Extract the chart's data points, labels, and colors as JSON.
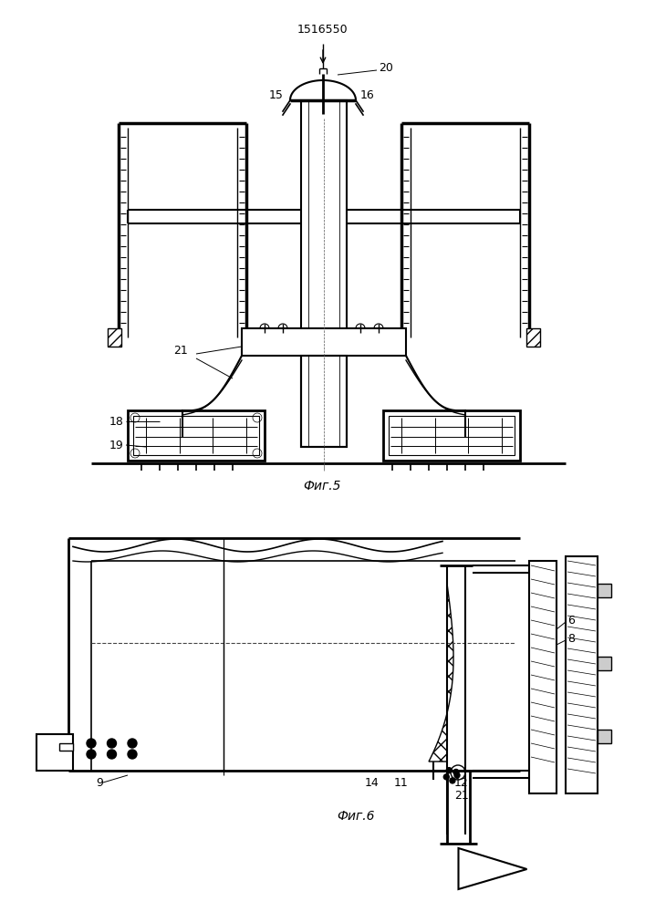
{
  "title": "1516550",
  "fig5_label": "Фиг.5",
  "fig6_label": "Фиг.6",
  "line_color": "#000000",
  "bg_color": "#ffffff",
  "lw": 1.0
}
